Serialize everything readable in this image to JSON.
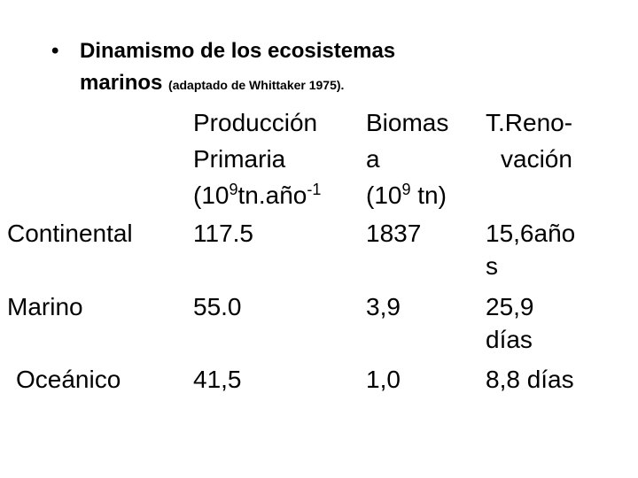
{
  "title": {
    "main": "Dinamismo de los ecosistemas",
    "line2": "marinos",
    "note": "(adaptado de Whittaker 1975)."
  },
  "table": {
    "columns": [
      {
        "lines": [
          "Producción",
          "Primaria"
        ],
        "unit": [
          {
            "text": "(10"
          },
          {
            "sup": "9"
          },
          {
            "text": "tn.año"
          },
          {
            "sup": "-1"
          }
        ]
      },
      {
        "lines": [
          "Biomas",
          "a"
        ],
        "unit": [
          {
            "text": "(10"
          },
          {
            "sup": "9"
          },
          {
            "text": " tn)"
          }
        ]
      },
      {
        "lines": [
          "T.Reno-",
          "vación"
        ]
      }
    ],
    "rows": [
      {
        "label": "Continental",
        "cells": [
          [
            "117.5"
          ],
          [
            "1837"
          ],
          [
            "15,6año",
            "s"
          ]
        ]
      },
      {
        "label": "Marino",
        "cells": [
          [
            "55.0"
          ],
          [
            "3,9"
          ],
          [
            "25,9",
            "días"
          ]
        ]
      },
      {
        "label": "Oceánico",
        "cells": [
          [
            "41,5"
          ],
          [
            "1,0"
          ],
          [
            "8,8 días"
          ]
        ]
      }
    ]
  }
}
